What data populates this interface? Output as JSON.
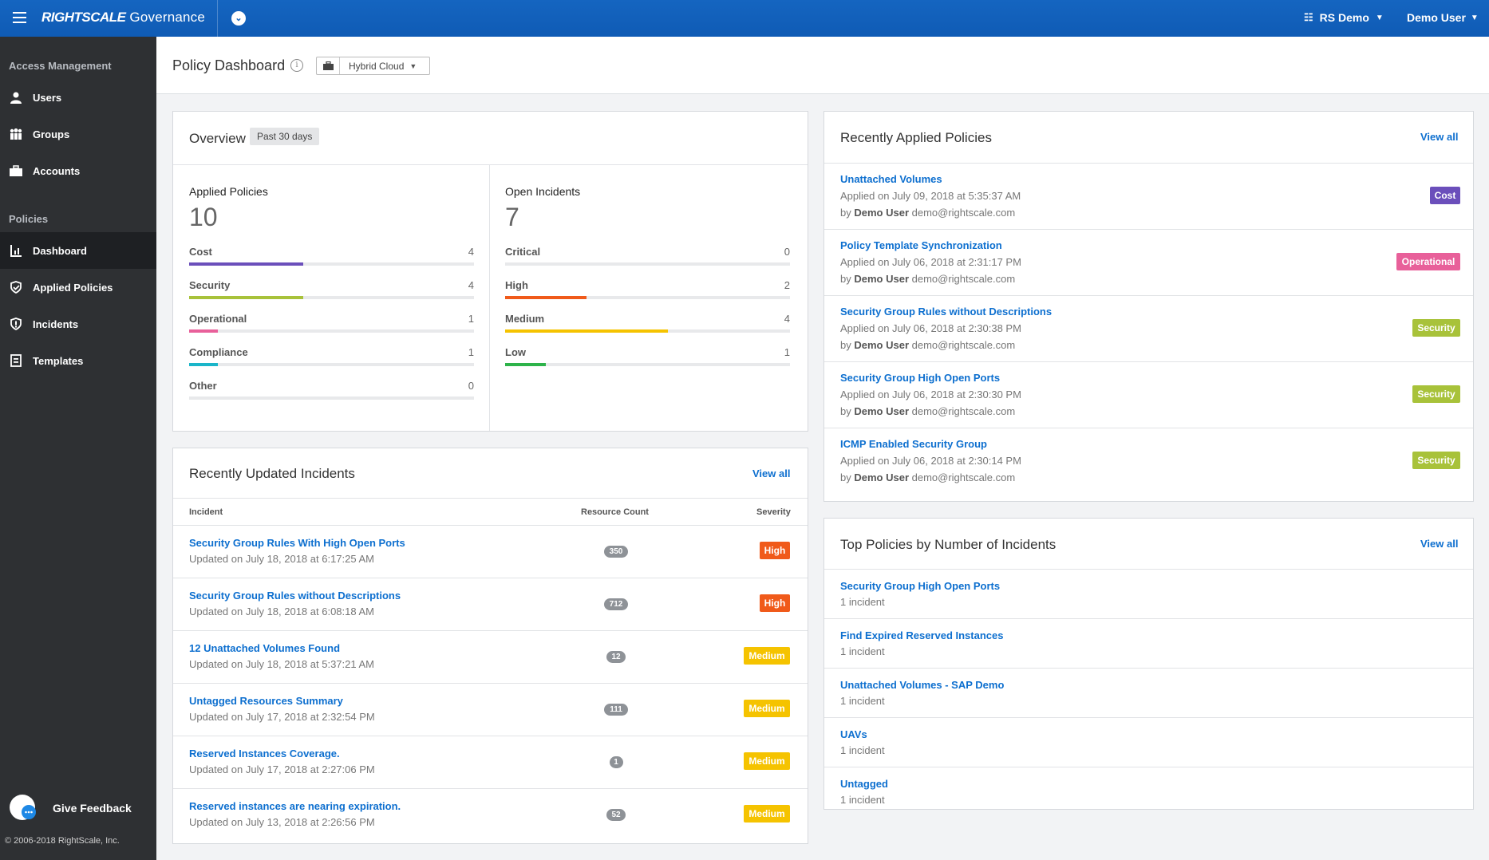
{
  "app": {
    "brand_bold": "RIGHTSCALE",
    "brand_light": " Governance",
    "org": "RS Demo",
    "user": "Demo User"
  },
  "sidebar": {
    "section1": "Access Management",
    "section2": "Policies",
    "items": [
      {
        "label": "Users",
        "icon": "user-icon"
      },
      {
        "label": "Groups",
        "icon": "groups-icon"
      },
      {
        "label": "Accounts",
        "icon": "briefcase-icon"
      },
      {
        "label": "Dashboard",
        "icon": "dashboard-icon"
      },
      {
        "label": "Applied Policies",
        "icon": "shield-check-icon"
      },
      {
        "label": "Incidents",
        "icon": "incident-icon"
      },
      {
        "label": "Templates",
        "icon": "template-icon"
      }
    ],
    "feedback": "Give Feedback",
    "copyright": "© 2006-2018 RightScale, Inc."
  },
  "header": {
    "title": "Policy Dashboard",
    "cloud": "Hybrid Cloud"
  },
  "overview": {
    "title": "Overview",
    "range": "Past 30 days",
    "applied": {
      "label": "Applied Policies",
      "total": "10",
      "metrics": [
        {
          "label": "Cost",
          "value": "4",
          "fraction": 0.4,
          "color": "#6b4fbb"
        },
        {
          "label": "Security",
          "value": "4",
          "fraction": 0.4,
          "color": "#a8c23a"
        },
        {
          "label": "Operational",
          "value": "1",
          "fraction": 0.1,
          "color": "#e8609a"
        },
        {
          "label": "Compliance",
          "value": "1",
          "fraction": 0.1,
          "color": "#1ab5c9"
        },
        {
          "label": "Other",
          "value": "0",
          "fraction": 0,
          "color": "#999999"
        }
      ]
    },
    "incidents": {
      "label": "Open Incidents",
      "total": "7",
      "metrics": [
        {
          "label": "Critical",
          "value": "0",
          "fraction": 0,
          "color": "#d0021b"
        },
        {
          "label": "High",
          "value": "2",
          "fraction": 0.2857,
          "color": "#f05a1a"
        },
        {
          "label": "Medium",
          "value": "4",
          "fraction": 0.5714,
          "color": "#f5c300"
        },
        {
          "label": "Low",
          "value": "1",
          "fraction": 0.1429,
          "color": "#2db34a"
        }
      ]
    }
  },
  "incidents_card": {
    "title": "Recently Updated Incidents",
    "view_all": "View all",
    "col_incident": "Incident",
    "col_count": "Resource Count",
    "col_severity": "Severity",
    "rows": [
      {
        "name": "Security Group Rules With High Open Ports",
        "updated": "Updated on July 18, 2018 at 6:17:25 AM",
        "count": "350",
        "severity": "High"
      },
      {
        "name": "Security Group Rules without Descriptions",
        "updated": "Updated on July 18, 2018 at 6:08:18 AM",
        "count": "712",
        "severity": "High"
      },
      {
        "name": "12 Unattached Volumes Found",
        "updated": "Updated on July 18, 2018 at 5:37:21 AM",
        "count": "12",
        "severity": "Medium"
      },
      {
        "name": "Untagged Resources Summary",
        "updated": "Updated on July 17, 2018 at 2:32:54 PM",
        "count": "111",
        "severity": "Medium"
      },
      {
        "name": "Reserved Instances Coverage.",
        "updated": "Updated on July 17, 2018 at 2:27:06 PM",
        "count": "1",
        "severity": "Medium"
      },
      {
        "name": "Reserved instances are nearing expiration.",
        "updated": "Updated on July 13, 2018 at 2:26:56 PM",
        "count": "52",
        "severity": "Medium"
      }
    ]
  },
  "applied_card": {
    "title": "Recently Applied Policies",
    "view_all": "View all",
    "by": "by",
    "rows": [
      {
        "name": "Unattached Volumes",
        "applied": "Applied on July 09, 2018 at 5:35:37 AM",
        "user": "Demo User",
        "email": "demo@rightscale.com",
        "tag": "Cost"
      },
      {
        "name": "Policy Template Synchronization",
        "applied": "Applied on July 06, 2018 at 2:31:17 PM",
        "user": "Demo User",
        "email": "demo@rightscale.com",
        "tag": "Operational"
      },
      {
        "name": "Security Group Rules without Descriptions",
        "applied": "Applied on July 06, 2018 at 2:30:38 PM",
        "user": "Demo User",
        "email": "demo@rightscale.com",
        "tag": "Security"
      },
      {
        "name": "Security Group High Open Ports",
        "applied": "Applied on July 06, 2018 at 2:30:30 PM",
        "user": "Demo User",
        "email": "demo@rightscale.com",
        "tag": "Security"
      },
      {
        "name": "ICMP Enabled Security Group",
        "applied": "Applied on July 06, 2018 at 2:30:14 PM",
        "user": "Demo User",
        "email": "demo@rightscale.com",
        "tag": "Security"
      }
    ]
  },
  "top_card": {
    "title": "Top Policies by Number of Incidents",
    "view_all": "View all",
    "rows": [
      {
        "name": "Security Group High Open Ports",
        "count": "1 incident"
      },
      {
        "name": "Find Expired Reserved Instances",
        "count": "1 incident"
      },
      {
        "name": "Unattached Volumes - SAP Demo",
        "count": "1 incident"
      },
      {
        "name": "UAVs",
        "count": "1 incident"
      },
      {
        "name": "Untagged",
        "count": "1 incident"
      }
    ]
  },
  "colors": {
    "accent": "#0d6fcf",
    "topbar": "#1565c0",
    "cost": "#6b4fbb",
    "operational": "#e8609a",
    "security": "#a8c23a",
    "high": "#f05a1a",
    "medium": "#f5c300"
  }
}
